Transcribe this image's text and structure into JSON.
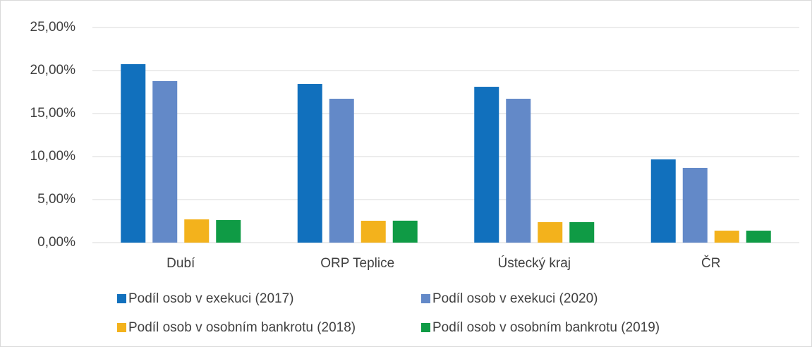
{
  "chart_data": {
    "type": "bar",
    "categories": [
      "Dubí",
      "ORP Teplice",
      "Ústecký kraj",
      "ČR"
    ],
    "series": [
      {
        "name": "Podíl osob v exekuci (2017)",
        "color": "#1170bd",
        "values": [
          20.74,
          18.44,
          18.11,
          9.67
        ]
      },
      {
        "name": "Podíl osob v exekuci (2020)",
        "color": "#6389c8",
        "values": [
          18.77,
          16.72,
          16.72,
          8.69
        ]
      },
      {
        "name": "Podíl osob v osobním bankrotu (2018)",
        "color": "#f3b21c",
        "values": [
          2.7,
          2.54,
          2.38,
          1.39
        ]
      },
      {
        "name": "Podíl osob v osobním bankrotu (2019)",
        "color": "#0f9b45",
        "values": [
          2.62,
          2.55,
          2.38,
          1.39
        ]
      }
    ],
    "ylim": [
      0,
      25
    ],
    "yticks": [
      {
        "value": 0,
        "label": "0,00%"
      },
      {
        "value": 5,
        "label": "5,00%"
      },
      {
        "value": 10,
        "label": "10,00%"
      },
      {
        "value": 15,
        "label": "15,00%"
      },
      {
        "value": 20,
        "label": "20,00%"
      },
      {
        "value": 25,
        "label": "25,00%"
      }
    ],
    "grid": true,
    "legend": "bottom"
  }
}
